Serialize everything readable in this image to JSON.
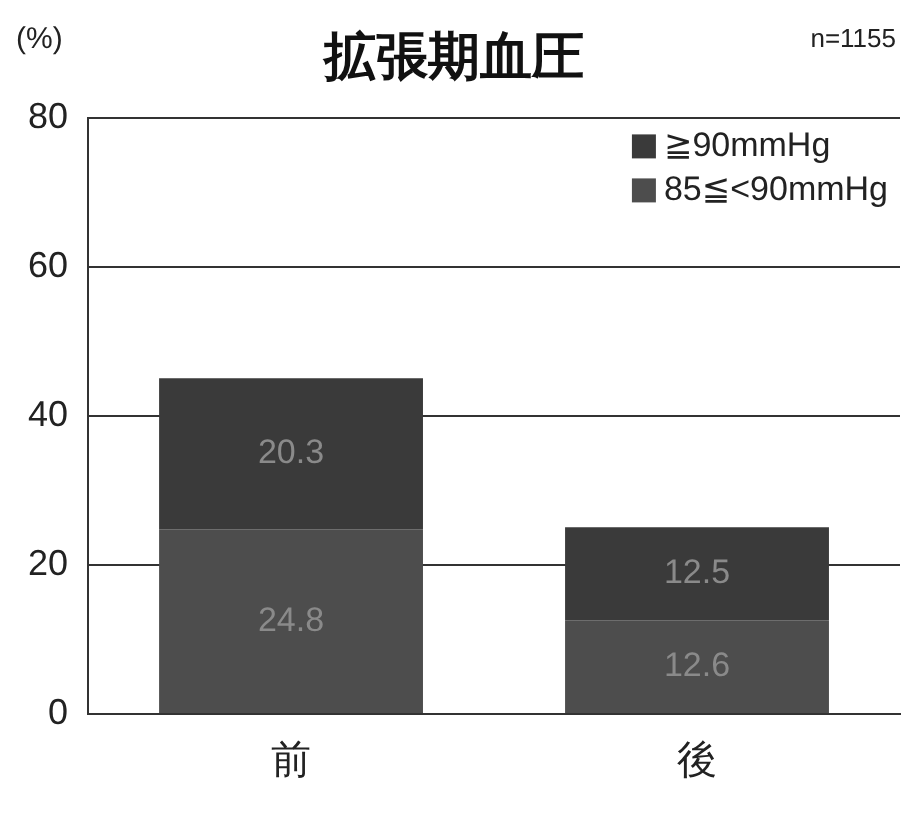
{
  "chart_data": {
    "type": "bar",
    "title": "拡張期血圧",
    "ylabel": "(%)",
    "annotations": [
      "n=1155"
    ],
    "categories": [
      "前",
      "後"
    ],
    "series": [
      {
        "name": "85≦<90mmHg",
        "color": "#4d4d4d",
        "values": [
          24.8,
          12.6
        ]
      },
      {
        "name": "≧90mmHg",
        "color": "#3a3a3a",
        "values": [
          20.3,
          12.5
        ]
      }
    ],
    "stacked": true,
    "ylim": [
      0,
      80
    ],
    "yticks": [
      0,
      20,
      40,
      60,
      80
    ],
    "grid": "y",
    "legend": "top right",
    "data_labels": true
  }
}
